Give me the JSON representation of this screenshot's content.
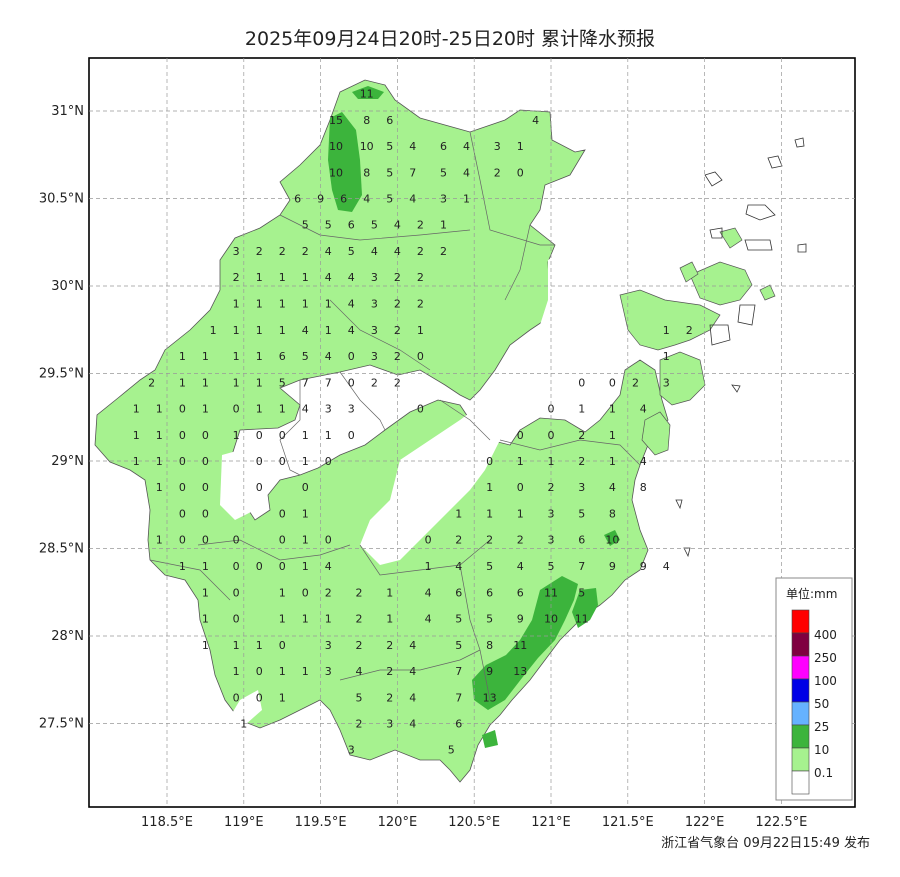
{
  "title": "2025年09月24日20时-25日20时 累计降水预报",
  "footer": "浙江省气象台 09月22日15:49 发布",
  "axes": {
    "y_labels": [
      "31°N",
      "30.5°N",
      "30°N",
      "29.5°N",
      "29°N",
      "28.5°N",
      "28°N",
      "27.5°N"
    ],
    "x_labels": [
      "118.5°E",
      "119°E",
      "119.5°E",
      "120°E",
      "120.5°E",
      "121°E",
      "121.5°E",
      "122°E",
      "122.5°E"
    ]
  },
  "legend": {
    "title": "单位:mm",
    "classes": [
      {
        "label": "400",
        "color": "#ff0000"
      },
      {
        "label": "250",
        "color": "#7f0040"
      },
      {
        "label": "100",
        "color": "#ff00ff"
      },
      {
        "label": "50",
        "color": "#0000e6"
      },
      {
        "label": "25",
        "color": "#66b2ff"
      },
      {
        "label": "10",
        "color": "#3cb43c"
      },
      {
        "label": "0.1",
        "color": "#a6f28f"
      },
      {
        "label": "",
        "color": "#ffffff"
      }
    ]
  },
  "colors": {
    "light_rain": "#a6f28f",
    "moderate_rain": "#3cb43c",
    "grid": "#999999",
    "boundary": "#555555"
  },
  "stations": [
    {
      "lon": 119.8,
      "lat": 31.1,
      "v": "11"
    },
    {
      "lon": 119.6,
      "lat": 30.95,
      "v": "15"
    },
    {
      "lon": 119.8,
      "lat": 30.95,
      "v": "8"
    },
    {
      "lon": 119.95,
      "lat": 30.95,
      "v": "6"
    },
    {
      "lon": 120.9,
      "lat": 30.95,
      "v": "4"
    },
    {
      "lon": 119.6,
      "lat": 30.8,
      "v": "10"
    },
    {
      "lon": 119.8,
      "lat": 30.8,
      "v": "10"
    },
    {
      "lon": 119.95,
      "lat": 30.8,
      "v": "5"
    },
    {
      "lon": 120.1,
      "lat": 30.8,
      "v": "4"
    },
    {
      "lon": 120.3,
      "lat": 30.8,
      "v": "6"
    },
    {
      "lon": 120.45,
      "lat": 30.8,
      "v": "4"
    },
    {
      "lon": 120.65,
      "lat": 30.8,
      "v": "3"
    },
    {
      "lon": 120.8,
      "lat": 30.8,
      "v": "1"
    },
    {
      "lon": 119.6,
      "lat": 30.65,
      "v": "10"
    },
    {
      "lon": 119.8,
      "lat": 30.65,
      "v": "8"
    },
    {
      "lon": 119.95,
      "lat": 30.65,
      "v": "5"
    },
    {
      "lon": 120.1,
      "lat": 30.65,
      "v": "7"
    },
    {
      "lon": 120.3,
      "lat": 30.65,
      "v": "5"
    },
    {
      "lon": 120.45,
      "lat": 30.65,
      "v": "4"
    },
    {
      "lon": 120.65,
      "lat": 30.65,
      "v": "2"
    },
    {
      "lon": 120.8,
      "lat": 30.65,
      "v": "0"
    },
    {
      "lon": 119.35,
      "lat": 30.5,
      "v": "6"
    },
    {
      "lon": 119.5,
      "lat": 30.5,
      "v": "9"
    },
    {
      "lon": 119.65,
      "lat": 30.5,
      "v": "6"
    },
    {
      "lon": 119.8,
      "lat": 30.5,
      "v": "4"
    },
    {
      "lon": 119.95,
      "lat": 30.5,
      "v": "5"
    },
    {
      "lon": 120.1,
      "lat": 30.5,
      "v": "4"
    },
    {
      "lon": 120.3,
      "lat": 30.5,
      "v": "3"
    },
    {
      "lon": 120.45,
      "lat": 30.5,
      "v": "1"
    },
    {
      "lon": 119.4,
      "lat": 30.35,
      "v": "5"
    },
    {
      "lon": 119.55,
      "lat": 30.35,
      "v": "5"
    },
    {
      "lon": 119.7,
      "lat": 30.35,
      "v": "6"
    },
    {
      "lon": 119.85,
      "lat": 30.35,
      "v": "5"
    },
    {
      "lon": 120.0,
      "lat": 30.35,
      "v": "4"
    },
    {
      "lon": 120.15,
      "lat": 30.35,
      "v": "2"
    },
    {
      "lon": 120.3,
      "lat": 30.35,
      "v": "1"
    },
    {
      "lon": 118.95,
      "lat": 30.2,
      "v": "3"
    },
    {
      "lon": 119.1,
      "lat": 30.2,
      "v": "2"
    },
    {
      "lon": 119.25,
      "lat": 30.2,
      "v": "2"
    },
    {
      "lon": 119.4,
      "lat": 30.2,
      "v": "2"
    },
    {
      "lon": 119.55,
      "lat": 30.2,
      "v": "4"
    },
    {
      "lon": 119.7,
      "lat": 30.2,
      "v": "5"
    },
    {
      "lon": 119.85,
      "lat": 30.2,
      "v": "4"
    },
    {
      "lon": 120.0,
      "lat": 30.2,
      "v": "4"
    },
    {
      "lon": 120.15,
      "lat": 30.2,
      "v": "2"
    },
    {
      "lon": 120.3,
      "lat": 30.2,
      "v": "2"
    },
    {
      "lon": 118.95,
      "lat": 30.05,
      "v": "2"
    },
    {
      "lon": 119.1,
      "lat": 30.05,
      "v": "1"
    },
    {
      "lon": 119.25,
      "lat": 30.05,
      "v": "1"
    },
    {
      "lon": 119.4,
      "lat": 30.05,
      "v": "1"
    },
    {
      "lon": 119.55,
      "lat": 30.05,
      "v": "4"
    },
    {
      "lon": 119.7,
      "lat": 30.05,
      "v": "4"
    },
    {
      "lon": 119.85,
      "lat": 30.05,
      "v": "3"
    },
    {
      "lon": 120.0,
      "lat": 30.05,
      "v": "2"
    },
    {
      "lon": 120.15,
      "lat": 30.05,
      "v": "2"
    },
    {
      "lon": 118.95,
      "lat": 29.9,
      "v": "1"
    },
    {
      "lon": 119.1,
      "lat": 29.9,
      "v": "1"
    },
    {
      "lon": 119.25,
      "lat": 29.9,
      "v": "1"
    },
    {
      "lon": 119.4,
      "lat": 29.9,
      "v": "1"
    },
    {
      "lon": 119.55,
      "lat": 29.9,
      "v": "1"
    },
    {
      "lon": 119.7,
      "lat": 29.9,
      "v": "4"
    },
    {
      "lon": 119.85,
      "lat": 29.9,
      "v": "3"
    },
    {
      "lon": 120.0,
      "lat": 29.9,
      "v": "2"
    },
    {
      "lon": 120.15,
      "lat": 29.9,
      "v": "2"
    },
    {
      "lon": 118.8,
      "lat": 29.75,
      "v": "1"
    },
    {
      "lon": 118.95,
      "lat": 29.75,
      "v": "1"
    },
    {
      "lon": 119.1,
      "lat": 29.75,
      "v": "1"
    },
    {
      "lon": 119.25,
      "lat": 29.75,
      "v": "1"
    },
    {
      "lon": 119.4,
      "lat": 29.75,
      "v": "4"
    },
    {
      "lon": 119.55,
      "lat": 29.75,
      "v": "1"
    },
    {
      "lon": 119.7,
      "lat": 29.75,
      "v": "4"
    },
    {
      "lon": 119.85,
      "lat": 29.75,
      "v": "3"
    },
    {
      "lon": 120.0,
      "lat": 29.75,
      "v": "2"
    },
    {
      "lon": 120.15,
      "lat": 29.75,
      "v": "1"
    },
    {
      "lon": 121.75,
      "lat": 29.75,
      "v": "1"
    },
    {
      "lon": 121.9,
      "lat": 29.75,
      "v": "2"
    },
    {
      "lon": 118.6,
      "lat": 29.6,
      "v": "1"
    },
    {
      "lon": 118.75,
      "lat": 29.6,
      "v": "1"
    },
    {
      "lon": 118.95,
      "lat": 29.6,
      "v": "1"
    },
    {
      "lon": 119.1,
      "lat": 29.6,
      "v": "1"
    },
    {
      "lon": 119.25,
      "lat": 29.6,
      "v": "6"
    },
    {
      "lon": 119.4,
      "lat": 29.6,
      "v": "5"
    },
    {
      "lon": 119.55,
      "lat": 29.6,
      "v": "4"
    },
    {
      "lon": 119.7,
      "lat": 29.6,
      "v": "0"
    },
    {
      "lon": 119.85,
      "lat": 29.6,
      "v": "3"
    },
    {
      "lon": 120.0,
      "lat": 29.6,
      "v": "2"
    },
    {
      "lon": 120.15,
      "lat": 29.6,
      "v": "0"
    },
    {
      "lon": 121.75,
      "lat": 29.6,
      "v": "1"
    },
    {
      "lon": 118.4,
      "lat": 29.45,
      "v": "2"
    },
    {
      "lon": 118.6,
      "lat": 29.45,
      "v": "1"
    },
    {
      "lon": 118.75,
      "lat": 29.45,
      "v": "1"
    },
    {
      "lon": 118.95,
      "lat": 29.45,
      "v": "1"
    },
    {
      "lon": 119.1,
      "lat": 29.45,
      "v": "1"
    },
    {
      "lon": 119.25,
      "lat": 29.45,
      "v": "5"
    },
    {
      "lon": 119.4,
      "lat": 29.45,
      "v": "7"
    },
    {
      "lon": 119.55,
      "lat": 29.45,
      "v": "7"
    },
    {
      "lon": 119.7,
      "lat": 29.45,
      "v": "0"
    },
    {
      "lon": 119.85,
      "lat": 29.45,
      "v": "2"
    },
    {
      "lon": 120.0,
      "lat": 29.45,
      "v": "2"
    },
    {
      "lon": 121.2,
      "lat": 29.45,
      "v": "0"
    },
    {
      "lon": 121.4,
      "lat": 29.45,
      "v": "0"
    },
    {
      "lon": 121.55,
      "lat": 29.45,
      "v": "2"
    },
    {
      "lon": 121.75,
      "lat": 29.45,
      "v": "3"
    },
    {
      "lon": 118.3,
      "lat": 29.3,
      "v": "1"
    },
    {
      "lon": 118.45,
      "lat": 29.3,
      "v": "1"
    },
    {
      "lon": 118.6,
      "lat": 29.3,
      "v": "0"
    },
    {
      "lon": 118.75,
      "lat": 29.3,
      "v": "1"
    },
    {
      "lon": 118.95,
      "lat": 29.3,
      "v": "0"
    },
    {
      "lon": 119.1,
      "lat": 29.3,
      "v": "1"
    },
    {
      "lon": 119.25,
      "lat": 29.3,
      "v": "1"
    },
    {
      "lon": 119.4,
      "lat": 29.3,
      "v": "4"
    },
    {
      "lon": 119.55,
      "lat": 29.3,
      "v": "3"
    },
    {
      "lon": 119.7,
      "lat": 29.3,
      "v": "3"
    },
    {
      "lon": 120.15,
      "lat": 29.3,
      "v": "0"
    },
    {
      "lon": 121.0,
      "lat": 29.3,
      "v": "0"
    },
    {
      "lon": 121.2,
      "lat": 29.3,
      "v": "1"
    },
    {
      "lon": 121.4,
      "lat": 29.3,
      "v": "1"
    },
    {
      "lon": 121.6,
      "lat": 29.3,
      "v": "4"
    },
    {
      "lon": 118.3,
      "lat": 29.15,
      "v": "1"
    },
    {
      "lon": 118.45,
      "lat": 29.15,
      "v": "1"
    },
    {
      "lon": 118.6,
      "lat": 29.15,
      "v": "0"
    },
    {
      "lon": 118.75,
      "lat": 29.15,
      "v": "0"
    },
    {
      "lon": 118.95,
      "lat": 29.15,
      "v": "1"
    },
    {
      "lon": 119.1,
      "lat": 29.15,
      "v": "0"
    },
    {
      "lon": 119.25,
      "lat": 29.15,
      "v": "0"
    },
    {
      "lon": 119.4,
      "lat": 29.15,
      "v": "1"
    },
    {
      "lon": 119.55,
      "lat": 29.15,
      "v": "1"
    },
    {
      "lon": 119.7,
      "lat": 29.15,
      "v": "0"
    },
    {
      "lon": 120.8,
      "lat": 29.15,
      "v": "0"
    },
    {
      "lon": 121.0,
      "lat": 29.15,
      "v": "0"
    },
    {
      "lon": 121.2,
      "lat": 29.15,
      "v": "2"
    },
    {
      "lon": 121.4,
      "lat": 29.15,
      "v": "1"
    },
    {
      "lon": 118.3,
      "lat": 29.0,
      "v": "1"
    },
    {
      "lon": 118.45,
      "lat": 29.0,
      "v": "1"
    },
    {
      "lon": 118.6,
      "lat": 29.0,
      "v": "0"
    },
    {
      "lon": 118.75,
      "lat": 29.0,
      "v": "0"
    },
    {
      "lon": 119.1,
      "lat": 29.0,
      "v": "0"
    },
    {
      "lon": 119.25,
      "lat": 29.0,
      "v": "0"
    },
    {
      "lon": 119.4,
      "lat": 29.0,
      "v": "1"
    },
    {
      "lon": 119.55,
      "lat": 29.0,
      "v": "0"
    },
    {
      "lon": 120.6,
      "lat": 29.0,
      "v": "0"
    },
    {
      "lon": 120.8,
      "lat": 29.0,
      "v": "1"
    },
    {
      "lon": 121.0,
      "lat": 29.0,
      "v": "1"
    },
    {
      "lon": 121.2,
      "lat": 29.0,
      "v": "2"
    },
    {
      "lon": 121.4,
      "lat": 29.0,
      "v": "1"
    },
    {
      "lon": 121.6,
      "lat": 29.0,
      "v": "4"
    },
    {
      "lon": 118.45,
      "lat": 28.85,
      "v": "1"
    },
    {
      "lon": 118.6,
      "lat": 28.85,
      "v": "0"
    },
    {
      "lon": 118.75,
      "lat": 28.85,
      "v": "0"
    },
    {
      "lon": 119.1,
      "lat": 28.85,
      "v": "0"
    },
    {
      "lon": 119.4,
      "lat": 28.85,
      "v": "0"
    },
    {
      "lon": 120.6,
      "lat": 28.85,
      "v": "1"
    },
    {
      "lon": 120.8,
      "lat": 28.85,
      "v": "0"
    },
    {
      "lon": 121.0,
      "lat": 28.85,
      "v": "2"
    },
    {
      "lon": 121.2,
      "lat": 28.85,
      "v": "3"
    },
    {
      "lon": 121.4,
      "lat": 28.85,
      "v": "4"
    },
    {
      "lon": 121.6,
      "lat": 28.85,
      "v": "8"
    },
    {
      "lon": 118.6,
      "lat": 28.7,
      "v": "0"
    },
    {
      "lon": 118.75,
      "lat": 28.7,
      "v": "0"
    },
    {
      "lon": 119.25,
      "lat": 28.7,
      "v": "0"
    },
    {
      "lon": 119.4,
      "lat": 28.7,
      "v": "1"
    },
    {
      "lon": 120.4,
      "lat": 28.7,
      "v": "1"
    },
    {
      "lon": 120.6,
      "lat": 28.7,
      "v": "1"
    },
    {
      "lon": 120.8,
      "lat": 28.7,
      "v": "1"
    },
    {
      "lon": 121.0,
      "lat": 28.7,
      "v": "3"
    },
    {
      "lon": 121.2,
      "lat": 28.7,
      "v": "5"
    },
    {
      "lon": 121.4,
      "lat": 28.7,
      "v": "8"
    },
    {
      "lon": 118.45,
      "lat": 28.55,
      "v": "1"
    },
    {
      "lon": 118.6,
      "lat": 28.55,
      "v": "0"
    },
    {
      "lon": 118.75,
      "lat": 28.55,
      "v": "0"
    },
    {
      "lon": 118.95,
      "lat": 28.55,
      "v": "0"
    },
    {
      "lon": 119.25,
      "lat": 28.55,
      "v": "0"
    },
    {
      "lon": 119.4,
      "lat": 28.55,
      "v": "1"
    },
    {
      "lon": 119.55,
      "lat": 28.55,
      "v": "0"
    },
    {
      "lon": 120.2,
      "lat": 28.55,
      "v": "0"
    },
    {
      "lon": 120.4,
      "lat": 28.55,
      "v": "2"
    },
    {
      "lon": 120.6,
      "lat": 28.55,
      "v": "2"
    },
    {
      "lon": 120.8,
      "lat": 28.55,
      "v": "2"
    },
    {
      "lon": 121.0,
      "lat": 28.55,
      "v": "3"
    },
    {
      "lon": 121.2,
      "lat": 28.55,
      "v": "6"
    },
    {
      "lon": 121.4,
      "lat": 28.55,
      "v": "10"
    },
    {
      "lon": 118.6,
      "lat": 28.4,
      "v": "1"
    },
    {
      "lon": 118.75,
      "lat": 28.4,
      "v": "1"
    },
    {
      "lon": 118.95,
      "lat": 28.4,
      "v": "0"
    },
    {
      "lon": 119.1,
      "lat": 28.4,
      "v": "0"
    },
    {
      "lon": 119.25,
      "lat": 28.4,
      "v": "0"
    },
    {
      "lon": 119.4,
      "lat": 28.4,
      "v": "1"
    },
    {
      "lon": 119.55,
      "lat": 28.4,
      "v": "4"
    },
    {
      "lon": 120.2,
      "lat": 28.4,
      "v": "1"
    },
    {
      "lon": 120.4,
      "lat": 28.4,
      "v": "4"
    },
    {
      "lon": 120.6,
      "lat": 28.4,
      "v": "5"
    },
    {
      "lon": 120.8,
      "lat": 28.4,
      "v": "4"
    },
    {
      "lon": 121.0,
      "lat": 28.4,
      "v": "5"
    },
    {
      "lon": 121.2,
      "lat": 28.4,
      "v": "7"
    },
    {
      "lon": 121.4,
      "lat": 28.4,
      "v": "9"
    },
    {
      "lon": 121.6,
      "lat": 28.4,
      "v": "9"
    },
    {
      "lon": 121.75,
      "lat": 28.4,
      "v": "4"
    },
    {
      "lon": 118.75,
      "lat": 28.25,
      "v": "1"
    },
    {
      "lon": 118.95,
      "lat": 28.25,
      "v": "0"
    },
    {
      "lon": 119.25,
      "lat": 28.25,
      "v": "1"
    },
    {
      "lon": 119.4,
      "lat": 28.25,
      "v": "0"
    },
    {
      "lon": 119.55,
      "lat": 28.25,
      "v": "2"
    },
    {
      "lon": 119.75,
      "lat": 28.25,
      "v": "2"
    },
    {
      "lon": 119.95,
      "lat": 28.25,
      "v": "1"
    },
    {
      "lon": 120.2,
      "lat": 28.25,
      "v": "4"
    },
    {
      "lon": 120.4,
      "lat": 28.25,
      "v": "6"
    },
    {
      "lon": 120.6,
      "lat": 28.25,
      "v": "6"
    },
    {
      "lon": 120.8,
      "lat": 28.25,
      "v": "6"
    },
    {
      "lon": 121.0,
      "lat": 28.25,
      "v": "11"
    },
    {
      "lon": 121.2,
      "lat": 28.25,
      "v": "5"
    },
    {
      "lon": 118.75,
      "lat": 28.1,
      "v": "1"
    },
    {
      "lon": 118.95,
      "lat": 28.1,
      "v": "0"
    },
    {
      "lon": 119.25,
      "lat": 28.1,
      "v": "1"
    },
    {
      "lon": 119.4,
      "lat": 28.1,
      "v": "1"
    },
    {
      "lon": 119.55,
      "lat": 28.1,
      "v": "1"
    },
    {
      "lon": 119.75,
      "lat": 28.1,
      "v": "2"
    },
    {
      "lon": 119.95,
      "lat": 28.1,
      "v": "1"
    },
    {
      "lon": 120.2,
      "lat": 28.1,
      "v": "4"
    },
    {
      "lon": 120.4,
      "lat": 28.1,
      "v": "5"
    },
    {
      "lon": 120.6,
      "lat": 28.1,
      "v": "5"
    },
    {
      "lon": 120.8,
      "lat": 28.1,
      "v": "9"
    },
    {
      "lon": 121.0,
      "lat": 28.1,
      "v": "10"
    },
    {
      "lon": 121.2,
      "lat": 28.1,
      "v": "11"
    },
    {
      "lon": 118.75,
      "lat": 27.95,
      "v": "1"
    },
    {
      "lon": 118.95,
      "lat": 27.95,
      "v": "1"
    },
    {
      "lon": 119.1,
      "lat": 27.95,
      "v": "1"
    },
    {
      "lon": 119.25,
      "lat": 27.95,
      "v": "0"
    },
    {
      "lon": 119.55,
      "lat": 27.95,
      "v": "3"
    },
    {
      "lon": 119.75,
      "lat": 27.95,
      "v": "2"
    },
    {
      "lon": 119.95,
      "lat": 27.95,
      "v": "2"
    },
    {
      "lon": 120.1,
      "lat": 27.95,
      "v": "4"
    },
    {
      "lon": 120.4,
      "lat": 27.95,
      "v": "5"
    },
    {
      "lon": 120.6,
      "lat": 27.95,
      "v": "8"
    },
    {
      "lon": 120.8,
      "lat": 27.95,
      "v": "11"
    },
    {
      "lon": 118.95,
      "lat": 27.8,
      "v": "1"
    },
    {
      "lon": 119.1,
      "lat": 27.8,
      "v": "0"
    },
    {
      "lon": 119.25,
      "lat": 27.8,
      "v": "1"
    },
    {
      "lon": 119.4,
      "lat": 27.8,
      "v": "1"
    },
    {
      "lon": 119.55,
      "lat": 27.8,
      "v": "3"
    },
    {
      "lon": 119.75,
      "lat": 27.8,
      "v": "4"
    },
    {
      "lon": 119.95,
      "lat": 27.8,
      "v": "2"
    },
    {
      "lon": 120.1,
      "lat": 27.8,
      "v": "4"
    },
    {
      "lon": 120.4,
      "lat": 27.8,
      "v": "7"
    },
    {
      "lon": 120.6,
      "lat": 27.8,
      "v": "9"
    },
    {
      "lon": 120.8,
      "lat": 27.8,
      "v": "13"
    },
    {
      "lon": 118.95,
      "lat": 27.65,
      "v": "0"
    },
    {
      "lon": 119.1,
      "lat": 27.65,
      "v": "0"
    },
    {
      "lon": 119.25,
      "lat": 27.65,
      "v": "1"
    },
    {
      "lon": 119.75,
      "lat": 27.65,
      "v": "5"
    },
    {
      "lon": 119.95,
      "lat": 27.65,
      "v": "2"
    },
    {
      "lon": 120.1,
      "lat": 27.65,
      "v": "4"
    },
    {
      "lon": 120.4,
      "lat": 27.65,
      "v": "7"
    },
    {
      "lon": 120.6,
      "lat": 27.65,
      "v": "13"
    },
    {
      "lon": 119.0,
      "lat": 27.5,
      "v": "1"
    },
    {
      "lon": 119.75,
      "lat": 27.5,
      "v": "2"
    },
    {
      "lon": 119.95,
      "lat": 27.5,
      "v": "3"
    },
    {
      "lon": 120.1,
      "lat": 27.5,
      "v": "4"
    },
    {
      "lon": 120.4,
      "lat": 27.5,
      "v": "6"
    },
    {
      "lon": 119.7,
      "lat": 27.35,
      "v": "3"
    },
    {
      "lon": 120.35,
      "lat": 27.35,
      "v": "5"
    }
  ]
}
